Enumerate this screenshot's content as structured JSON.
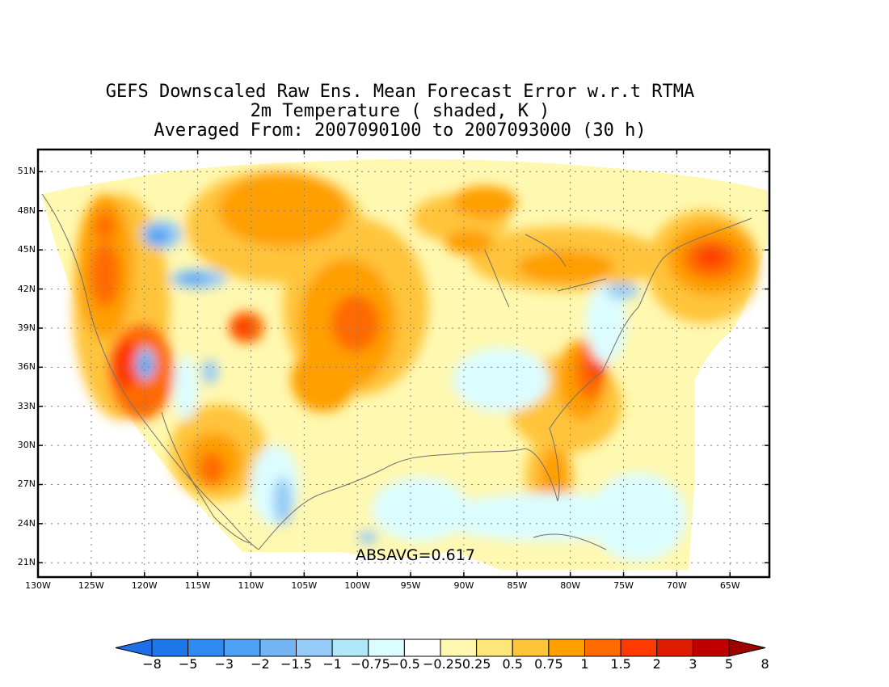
{
  "title": {
    "line1": "GEFS Downscaled Raw Ens. Mean Forecast Error w.r.t RTMA",
    "line2": "2m Temperature ( shaded, K )",
    "line3": "Averaged From: 2007090100 to 2007093000 (30 h)"
  },
  "map": {
    "lon_labels": [
      "130W",
      "125W",
      "120W",
      "115W",
      "110W",
      "105W",
      "100W",
      "95W",
      "90W",
      "85W",
      "80W",
      "75W",
      "70W",
      "65W"
    ],
    "lat_labels": [
      "51N",
      "48N",
      "45N",
      "42N",
      "39N",
      "36N",
      "33N",
      "30N",
      "27N",
      "24N",
      "21N"
    ],
    "lon_range": [
      -130,
      -61.3
    ],
    "lat_range": [
      19.9,
      52.7
    ],
    "grid": true,
    "absavg": "ABSAVG=0.617"
  },
  "colorbar": {
    "labels": [
      "−8",
      "−5",
      "−3",
      "−2",
      "−1.5",
      "−1",
      "−0.75",
      "−0.5",
      "−0.25",
      "0.25",
      "0.5",
      "0.75",
      "1",
      "1.5",
      "2",
      "3",
      "5",
      "8"
    ],
    "colors": [
      "#1e6ee8",
      "#1f78eb",
      "#2f8bf0",
      "#4ea0f2",
      "#74b5f5",
      "#96caf8",
      "#b0e8f8",
      "#dcfdff",
      "#ffffff",
      "#fff8b0",
      "#ffe67a",
      "#ffc43a",
      "#ff9f00",
      "#ff6a00",
      "#ff3a00",
      "#e01c00",
      "#c00000",
      "#a00000"
    ]
  }
}
